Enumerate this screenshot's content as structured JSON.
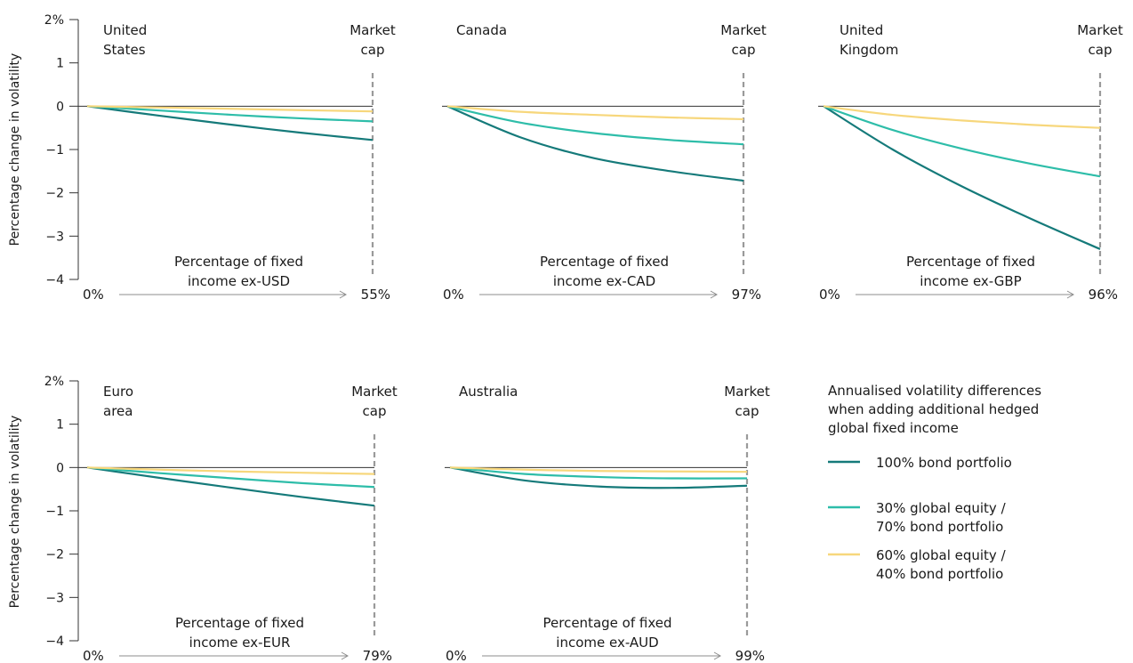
{
  "colors": {
    "bond100": "#157a7a",
    "eq30": "#2ebda9",
    "eq60": "#f7d77c",
    "market_cap_line": "#9a9a9a",
    "axis": "#333333",
    "arrow": "#8c8c8c"
  },
  "y_axis_label": "Percentage change in volatility",
  "legend": {
    "title": [
      "Annualised volatility differences",
      "when adding additional hedged",
      "global fixed income"
    ],
    "items": [
      {
        "series": "bond100",
        "lines": [
          "100% bond portfolio"
        ]
      },
      {
        "series": "eq30",
        "lines": [
          "30% global equity /",
          "70% bond portfolio"
        ]
      },
      {
        "series": "eq60",
        "lines": [
          "60% global equity /",
          "40% bond portfolio"
        ]
      }
    ]
  },
  "chart_data": [
    {
      "type": "line",
      "title": [
        "United",
        "States"
      ],
      "market_cap_label": [
        "Market",
        "cap"
      ],
      "x_caption": [
        "Percentage of fixed",
        "income ex-USD"
      ],
      "x_start_label": "0%",
      "x_end_label": "55%",
      "yticks": [
        "2%",
        "1",
        "0",
        "−1",
        "−2",
        "−3",
        "−4"
      ],
      "ylim": [
        -4,
        2
      ],
      "xlim": [
        0,
        55
      ],
      "series": [
        {
          "key": "bond100",
          "x": [
            0,
            14,
            28,
            41,
            55
          ],
          "y": [
            0,
            -0.22,
            -0.43,
            -0.61,
            -0.78
          ]
        },
        {
          "key": "eq30",
          "x": [
            0,
            14,
            28,
            41,
            55
          ],
          "y": [
            0,
            -0.1,
            -0.2,
            -0.28,
            -0.35
          ]
        },
        {
          "key": "eq60",
          "x": [
            0,
            14,
            28,
            41,
            55
          ],
          "y": [
            0,
            -0.03,
            -0.06,
            -0.09,
            -0.12
          ]
        }
      ]
    },
    {
      "type": "line",
      "title": [
        "Canada"
      ],
      "market_cap_label": [
        "Market",
        "cap"
      ],
      "x_caption": [
        "Percentage of fixed",
        "income ex-CAD"
      ],
      "x_start_label": "0%",
      "x_end_label": "97%",
      "yticks": [],
      "ylim": [
        -4,
        2
      ],
      "xlim": [
        0,
        97
      ],
      "series": [
        {
          "key": "bond100",
          "x": [
            0,
            24,
            48,
            73,
            97
          ],
          "y": [
            0,
            -0.72,
            -1.2,
            -1.5,
            -1.72
          ]
        },
        {
          "key": "eq30",
          "x": [
            0,
            24,
            48,
            73,
            97
          ],
          "y": [
            0,
            -0.38,
            -0.62,
            -0.78,
            -0.88
          ]
        },
        {
          "key": "eq60",
          "x": [
            0,
            24,
            48,
            73,
            97
          ],
          "y": [
            0,
            -0.13,
            -0.2,
            -0.26,
            -0.3
          ]
        }
      ]
    },
    {
      "type": "line",
      "title": [
        "United",
        "Kingdom"
      ],
      "market_cap_label": [
        "Market",
        "cap"
      ],
      "x_caption": [
        "Percentage of fixed",
        "income ex-GBP"
      ],
      "x_start_label": "0%",
      "x_end_label": "96%",
      "yticks": [],
      "ylim": [
        -4,
        2
      ],
      "xlim": [
        0,
        96
      ],
      "series": [
        {
          "key": "bond100",
          "x": [
            0,
            24,
            48,
            72,
            96
          ],
          "y": [
            0,
            -1.0,
            -1.85,
            -2.6,
            -3.3
          ]
        },
        {
          "key": "eq30",
          "x": [
            0,
            24,
            48,
            72,
            96
          ],
          "y": [
            0,
            -0.55,
            -0.98,
            -1.33,
            -1.62
          ]
        },
        {
          "key": "eq60",
          "x": [
            0,
            24,
            48,
            72,
            96
          ],
          "y": [
            0,
            -0.2,
            -0.33,
            -0.43,
            -0.5
          ]
        }
      ]
    },
    {
      "type": "line",
      "title": [
        "Euro",
        "area"
      ],
      "market_cap_label": [
        "Market",
        "cap"
      ],
      "x_caption": [
        "Percentage of fixed",
        "income ex-EUR"
      ],
      "x_start_label": "0%",
      "x_end_label": "79%",
      "yticks": [
        "2%",
        "1",
        "0",
        "−1",
        "−2",
        "−3",
        "−4"
      ],
      "ylim": [
        -4,
        2
      ],
      "xlim": [
        0,
        79
      ],
      "series": [
        {
          "key": "bond100",
          "x": [
            0,
            20,
            40,
            59,
            79
          ],
          "y": [
            0,
            -0.24,
            -0.47,
            -0.68,
            -0.88
          ]
        },
        {
          "key": "eq30",
          "x": [
            0,
            20,
            40,
            59,
            79
          ],
          "y": [
            0,
            -0.13,
            -0.25,
            -0.36,
            -0.45
          ]
        },
        {
          "key": "eq60",
          "x": [
            0,
            20,
            40,
            59,
            79
          ],
          "y": [
            0,
            -0.05,
            -0.09,
            -0.12,
            -0.15
          ]
        }
      ]
    },
    {
      "type": "line",
      "title": [
        "Australia"
      ],
      "market_cap_label": [
        "Market",
        "cap"
      ],
      "x_caption": [
        "Percentage of fixed",
        "income ex-AUD"
      ],
      "x_start_label": "0%",
      "x_end_label": "99%",
      "yticks": [],
      "ylim": [
        -4,
        2
      ],
      "xlim": [
        0,
        99
      ],
      "series": [
        {
          "key": "bond100",
          "x": [
            0,
            25,
            50,
            74,
            99
          ],
          "y": [
            0,
            -0.3,
            -0.44,
            -0.47,
            -0.42
          ]
        },
        {
          "key": "eq30",
          "x": [
            0,
            25,
            50,
            74,
            99
          ],
          "y": [
            0,
            -0.15,
            -0.22,
            -0.25,
            -0.25
          ]
        },
        {
          "key": "eq60",
          "x": [
            0,
            25,
            50,
            74,
            99
          ],
          "y": [
            0,
            -0.05,
            -0.08,
            -0.09,
            -0.1
          ]
        }
      ]
    }
  ]
}
